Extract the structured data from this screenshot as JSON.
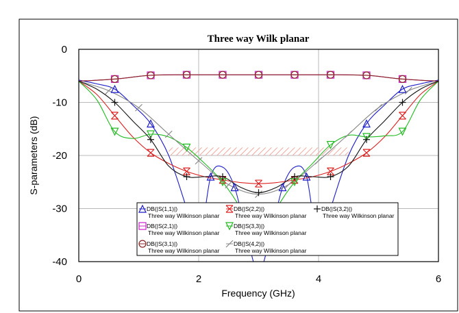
{
  "chart_data": {
    "type": "line",
    "title": "Three way Wilk planar",
    "xlabel": "Frequency (GHz)",
    "ylabel": "S-parameters (dB)",
    "xlim": [
      0,
      6
    ],
    "ylim": [
      -40,
      0
    ],
    "x_ticks": [
      "0",
      "2",
      "4",
      "6"
    ],
    "y_ticks": [
      "0",
      "-10",
      "-20",
      "-30",
      "-40"
    ],
    "x_tick_values": [
      0,
      2,
      4,
      6
    ],
    "y_tick_values": [
      0,
      -10,
      -20,
      -30,
      -40
    ],
    "grid": true,
    "legend_position": "bottom-center",
    "spec_band": {
      "x": [
        1.5,
        4.5
      ],
      "y": [
        -18.5,
        -20
      ]
    },
    "series": [
      {
        "name": "DB(|S(1,1)|)",
        "subtitle": "Three way Wilkinson planar",
        "color": "#1c1cc8",
        "marker": "triangle",
        "x": [
          0,
          0.3,
          0.6,
          0.9,
          1.2,
          1.5,
          1.8,
          2.0,
          2.2,
          2.4,
          2.6,
          2.8,
          3.0,
          3.2,
          3.4,
          3.6,
          3.8,
          4.0,
          4.2,
          4.5,
          4.8,
          5.1,
          5.4,
          5.7,
          6.0
        ],
        "y": [
          -5.8,
          -6.5,
          -7.5,
          -10.5,
          -14,
          -20,
          -30,
          -37,
          -24,
          -22.2,
          -26,
          -35,
          -42,
          -35,
          -26,
          -22.2,
          -24,
          -37,
          -30,
          -20,
          -14,
          -10.5,
          -7.5,
          -6.5,
          -5.8
        ]
      },
      {
        "name": "DB(|S(2,1)|)",
        "subtitle": "Three way Wilkinson planar",
        "color": "#cc22cc",
        "marker": "square",
        "x": [
          0,
          0.6,
          1.2,
          1.8,
          2.4,
          3.0,
          3.6,
          4.2,
          4.8,
          5.4,
          6.0
        ],
        "y": [
          -6.0,
          -5.6,
          -4.9,
          -4.8,
          -4.8,
          -4.8,
          -4.8,
          -4.8,
          -4.9,
          -5.6,
          -6.0
        ]
      },
      {
        "name": "DB(|S(3,1)|)",
        "subtitle": "Three way Wilkinson planar",
        "color": "#882222",
        "marker": "circle",
        "x": [
          0,
          0.6,
          1.2,
          1.8,
          2.4,
          3.0,
          3.6,
          4.2,
          4.8,
          5.4,
          6.0
        ],
        "y": [
          -6.0,
          -5.6,
          -4.9,
          -4.8,
          -4.8,
          -4.8,
          -4.8,
          -4.8,
          -4.9,
          -5.6,
          -6.0
        ]
      },
      {
        "name": "DB(|S(2,2)|)",
        "subtitle": "Three way Wilkinson planar",
        "color": "#dd2222",
        "marker": "x",
        "x": [
          0,
          0.3,
          0.6,
          0.9,
          1.2,
          1.5,
          1.8,
          2.1,
          2.4,
          2.7,
          3.0,
          3.3,
          3.6,
          3.9,
          4.2,
          4.5,
          4.8,
          5.1,
          5.4,
          5.7,
          6.0
        ],
        "y": [
          -6,
          -8.5,
          -12.5,
          -16.5,
          -19.5,
          -21.5,
          -23,
          -24,
          -24.6,
          -25.1,
          -25.3,
          -25.1,
          -24.6,
          -24,
          -23,
          -21.5,
          -19.5,
          -16.5,
          -12.5,
          -8.5,
          -6
        ]
      },
      {
        "name": "DB(|S(3,3)|)",
        "subtitle": "Three way Wilkinson planar",
        "color": "#22bb22",
        "marker": "triangle-down",
        "x": [
          0,
          0.3,
          0.6,
          0.9,
          1.2,
          1.5,
          1.8,
          2.1,
          2.4,
          2.7,
          3.0,
          3.3,
          3.6,
          3.9,
          4.2,
          4.5,
          4.8,
          5.1,
          5.4,
          5.7,
          6.0
        ],
        "y": [
          -6,
          -9.5,
          -15.5,
          -16.8,
          -16,
          -16.5,
          -18.5,
          -21.5,
          -25,
          -30,
          -37,
          -30,
          -25,
          -21.5,
          -18,
          -16.2,
          -16.5,
          -16.3,
          -15.5,
          -9.5,
          -6
        ]
      },
      {
        "name": "DB(|S(4,2)|)",
        "subtitle": "Three way Wilkinson planar",
        "color": "#888888",
        "marker": "slash",
        "x": [
          0,
          0.5,
          1.0,
          1.5,
          2.0,
          2.5,
          3.0,
          3.5,
          4.0,
          4.5,
          5.0,
          5.5,
          6.0
        ],
        "y": [
          -6,
          -7.8,
          -11,
          -16,
          -21,
          -25.5,
          -27.3,
          -25.5,
          -21,
          -16,
          -11,
          -7.8,
          -6
        ]
      },
      {
        "name": "DB(|S(3,2)|)",
        "subtitle": "Three way Wilkinson planar",
        "color": "#111111",
        "marker": "plus",
        "x": [
          0,
          0.3,
          0.6,
          0.9,
          1.2,
          1.5,
          1.8,
          2.1,
          2.4,
          2.7,
          3.0,
          3.3,
          3.6,
          3.9,
          4.2,
          4.5,
          4.8,
          5.1,
          5.4,
          5.7,
          6.0
        ],
        "y": [
          -6,
          -7.5,
          -10,
          -13.5,
          -17,
          -22,
          -24,
          -24,
          -24,
          -26,
          -27,
          -26,
          -24,
          -24,
          -24,
          -22,
          -17,
          -13.5,
          -10,
          -7.5,
          -6
        ]
      }
    ]
  }
}
